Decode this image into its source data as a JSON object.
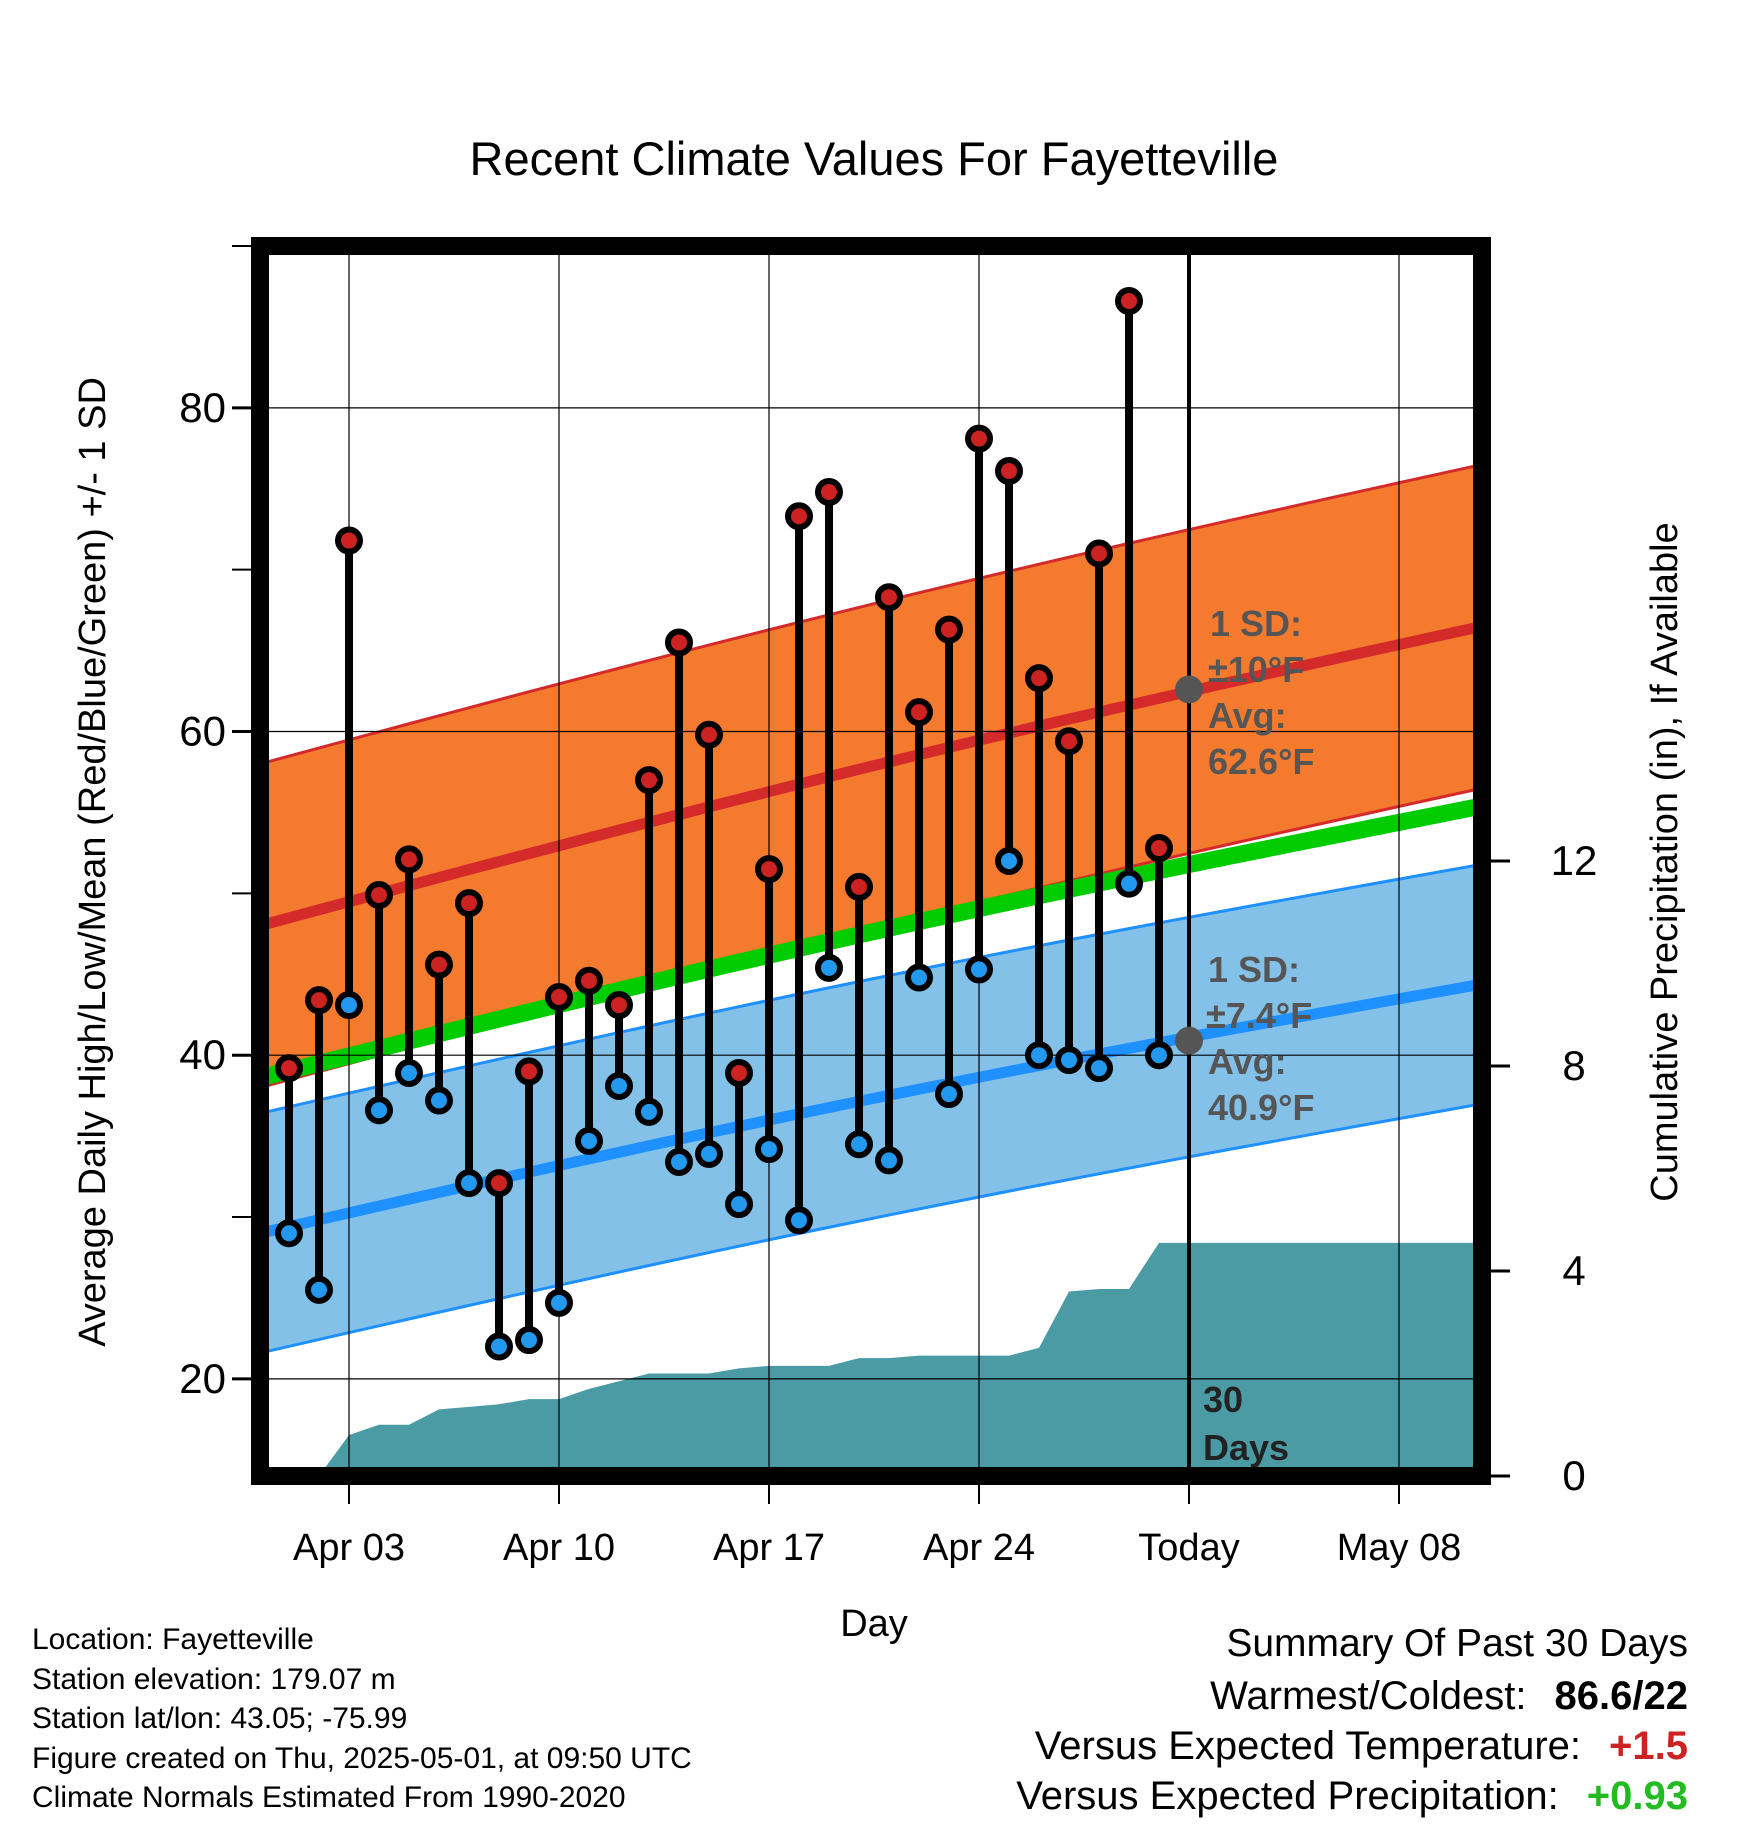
{
  "chart_data": {
    "type": "line",
    "title": "Recent Climate Values For Fayetteville",
    "xlabel": "Day",
    "ylabel_left": "Average Daily High/Low/Mean (Red/Blue/Green) +/- 1 SD",
    "ylabel_right": "Cumulative Precipitation (in), If Available",
    "x_tick_labels": [
      "Apr 03",
      "Apr 10",
      "Apr 17",
      "Apr 24",
      "Today",
      "May 08"
    ],
    "y_left_ticks": [
      "20",
      "40",
      "60",
      "80"
    ],
    "y_left_range": [
      14,
      90
    ],
    "y_right_ticks": [
      "0",
      "4",
      "8",
      "12"
    ],
    "y_right_range": [
      0,
      24
    ],
    "grid": true,
    "days": [
      "Apr 01",
      "Apr 02",
      "Apr 03",
      "Apr 04",
      "Apr 05",
      "Apr 06",
      "Apr 07",
      "Apr 08",
      "Apr 09",
      "Apr 10",
      "Apr 11",
      "Apr 12",
      "Apr 13",
      "Apr 14",
      "Apr 15",
      "Apr 16",
      "Apr 17",
      "Apr 18",
      "Apr 19",
      "Apr 20",
      "Apr 21",
      "Apr 22",
      "Apr 23",
      "Apr 24",
      "Apr 25",
      "Apr 26",
      "Apr 27",
      "Apr 28",
      "Apr 29",
      "Apr 30"
    ],
    "high": [
      39.2,
      43.4,
      71.8,
      49.9,
      52.1,
      45.6,
      49.4,
      32.1,
      39.0,
      43.6,
      44.6,
      43.1,
      57.0,
      65.5,
      59.8,
      38.9,
      51.5,
      73.3,
      74.8,
      50.4,
      68.3,
      61.2,
      66.3,
      78.1,
      76.1,
      63.3,
      59.4,
      71.0,
      86.6,
      52.8
    ],
    "low": [
      29.0,
      25.5,
      43.1,
      36.6,
      38.9,
      37.2,
      32.1,
      22.0,
      22.4,
      24.7,
      34.7,
      38.1,
      36.5,
      33.4,
      33.9,
      30.8,
      34.2,
      29.8,
      45.4,
      34.5,
      33.5,
      44.8,
      37.6,
      45.3,
      52.0,
      40.0,
      39.7,
      39.2,
      50.6,
      40.0
    ],
    "normal_high": {
      "start": 48.0,
      "today": 62.6,
      "end": 66.5,
      "sd": 10
    },
    "normal_low": {
      "start": 29.0,
      "today": 40.9,
      "end": 44.4,
      "sd": 7.4
    },
    "normal_mean": {
      "start": 38.6,
      "end": 55.4
    },
    "precip_cumulative": [
      0.0,
      0.0,
      0.8,
      1.0,
      1.0,
      1.3,
      1.35,
      1.4,
      1.5,
      1.5,
      1.7,
      1.85,
      2.0,
      2.0,
      2.0,
      2.1,
      2.15,
      2.15,
      2.15,
      2.3,
      2.3,
      2.35,
      2.35,
      2.35,
      2.35,
      2.5,
      3.6,
      3.65,
      3.65,
      4.55,
      4.55
    ]
  },
  "annotations": {
    "high_sd": "1 SD:",
    "high_sd_val": "±10°F",
    "high_avg": "Avg:",
    "high_avg_val": "62.6°F",
    "low_sd": "1 SD:",
    "low_sd_val": "±7.4°F",
    "low_avg": "Avg:",
    "low_avg_val": "40.9°F",
    "days_num": "30",
    "days_label": "Days"
  },
  "info": {
    "location": "Location: Fayetteville",
    "elevation": "Station elevation: 179.07 m",
    "latlon": "Station lat/lon: 43.05; -75.99",
    "created": "Figure created on Thu, 2025-05-01, at 09:50 UTC",
    "normals": "Climate Normals Estimated From 1990-2020"
  },
  "summary": {
    "heading": "Summary Of Past 30 Days",
    "warm_label": "Warmest/Coldest:",
    "warm_value": "86.6/22",
    "temp_label": "Versus Expected Temperature:",
    "temp_value": "+1.5",
    "precip_label": "Versus Expected Precipitation:",
    "precip_value": "+0.93"
  },
  "colors": {
    "high_band": "#f47b2e",
    "high_line": "#d42a2a",
    "low_band": "#84c1e8",
    "low_line": "#1e90ff",
    "mean_line": "#00cc00",
    "precip": "#4a9ba4",
    "high_dot": "#cc2222",
    "low_dot": "#2299ee",
    "temp_positive": "#cc2222",
    "precip_positive": "#22bb22",
    "annotation": "#555555"
  }
}
